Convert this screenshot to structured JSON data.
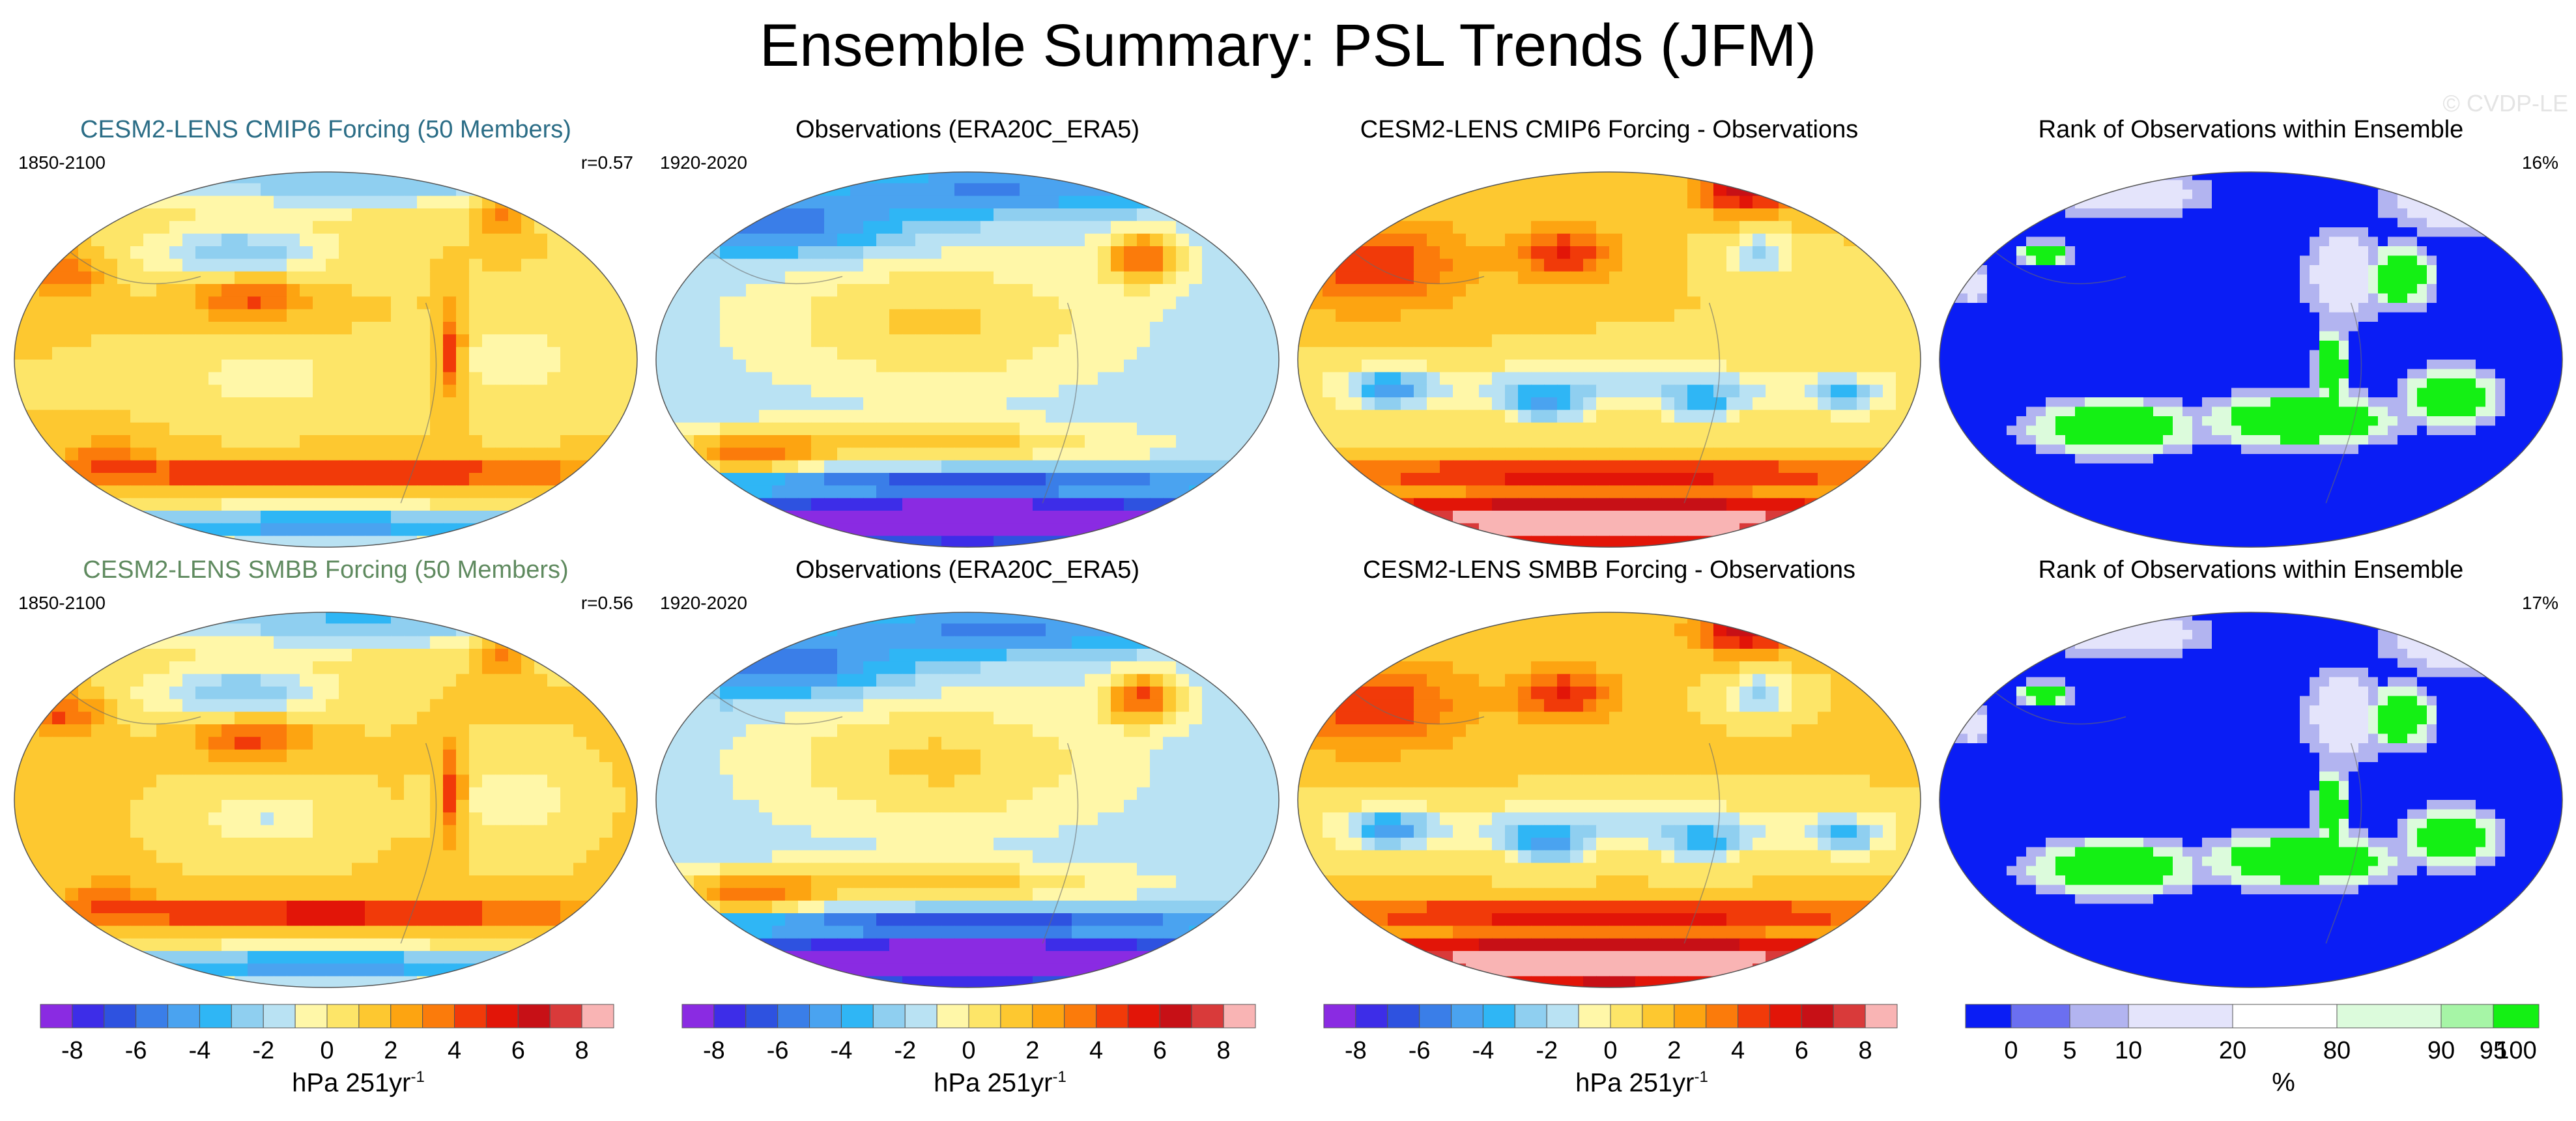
{
  "title": "Ensemble Summary: PSL Trends (JFM)",
  "watermark": "© CVDP-LE",
  "rows": [
    {
      "panels": [
        {
          "kind": "model",
          "title": "CESM2-LENS CMIP6 Forcing (50 Members)",
          "title_color": "#2b6d86",
          "left_note": "1850-2100",
          "right_note": "r=0.57"
        },
        {
          "kind": "obs",
          "title": "Observations (ERA20C_ERA5)",
          "title_color": "#000000",
          "left_note": "1920-2020",
          "right_note": ""
        },
        {
          "kind": "diff",
          "title": "CESM2-LENS CMIP6 Forcing - Observations",
          "title_color": "#000000",
          "left_note": "",
          "right_note": ""
        },
        {
          "kind": "rank",
          "title": "Rank of Observations within Ensemble",
          "title_color": "#000000",
          "left_note": "",
          "right_note": "16%"
        }
      ]
    },
    {
      "panels": [
        {
          "kind": "model",
          "title": "CESM2-LENS SMBB Forcing (50 Members)",
          "title_color": "#5f8a5f",
          "left_note": "1850-2100",
          "right_note": "r=0.56"
        },
        {
          "kind": "obs",
          "title": "Observations (ERA20C_ERA5)",
          "title_color": "#000000",
          "left_note": "1920-2020",
          "right_note": ""
        },
        {
          "kind": "diff",
          "title": "CESM2-LENS SMBB Forcing - Observations",
          "title_color": "#000000",
          "left_note": "",
          "right_note": ""
        },
        {
          "kind": "rank",
          "title": "Rank of Observations within Ensemble",
          "title_color": "#000000",
          "left_note": "",
          "right_note": "17%"
        }
      ]
    }
  ],
  "colorbars": [
    {
      "type": "psl",
      "ticks": [
        "-8",
        "-6",
        "-4",
        "-2",
        "0",
        "2",
        "4",
        "6",
        "8"
      ],
      "unit": "hPa 251yr",
      "unit_sup": "-1"
    },
    {
      "type": "psl",
      "ticks": [
        "-8",
        "-6",
        "-4",
        "-2",
        "0",
        "2",
        "4",
        "6",
        "8"
      ],
      "unit": "hPa 251yr",
      "unit_sup": "-1"
    },
    {
      "type": "psl",
      "ticks": [
        "-8",
        "-6",
        "-4",
        "-2",
        "0",
        "2",
        "4",
        "6",
        "8"
      ],
      "unit": "hPa 251yr",
      "unit_sup": "-1"
    },
    {
      "type": "rank",
      "ticks": [
        "0",
        "5",
        "10",
        "20",
        "80",
        "90",
        "95",
        "100"
      ],
      "unit": "%",
      "unit_sup": ""
    }
  ],
  "chart_data": {
    "type": "heatmap",
    "description_variable": "PSL",
    "psl_levels": [
      -9,
      -8,
      -7,
      -6,
      -5,
      -4,
      -3,
      -2,
      -1,
      0,
      1,
      2,
      3,
      4,
      5,
      6,
      7,
      8,
      9
    ],
    "psl_colors": [
      "#8a2be2",
      "#3d2de8",
      "#2e52e0",
      "#3a7ee8",
      "#4aa3f0",
      "#2fb6f5",
      "#8fcff0",
      "#b9e2f3",
      "#fff7a8",
      "#fde568",
      "#fdc830",
      "#fda411",
      "#fb7b0b",
      "#f13a09",
      "#e21508",
      "#c71016",
      "#d93a3a",
      "#f9b4b4"
    ],
    "rank_levels": [
      0,
      5,
      10,
      20,
      80,
      90,
      95,
      100
    ],
    "rank_colors": [
      "#0a1df5",
      "#6b6ff0",
      "#b2b4f0",
      "#e4e4fb",
      "#ffffff",
      "#dcfbdc",
      "#a6f5a6",
      "#14f014"
    ]
  }
}
